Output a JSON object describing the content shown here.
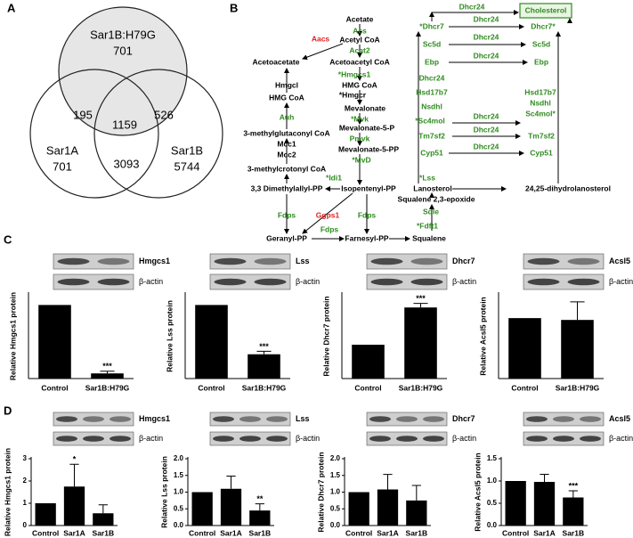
{
  "panel_labels": [
    "A",
    "B",
    "C",
    "D"
  ],
  "venn": {
    "sets": [
      {
        "name": "Sar1B:H79G",
        "count": 701
      },
      {
        "name": "Sar1A",
        "count": 701
      },
      {
        "name": "Sar1B",
        "count": 5744
      }
    ],
    "intersections": [
      195,
      526,
      3093,
      1159
    ]
  },
  "pathway": {
    "nodes": [
      {
        "label": "Acetate",
        "color": "#000000"
      },
      {
        "label": "Acs",
        "color": "#2e8b1e"
      },
      {
        "label": "Acetyl CoA",
        "color": "#000000"
      },
      {
        "label": "Aacs",
        "color": "#e02020"
      },
      {
        "label": "Acetoacetate",
        "color": "#000000"
      },
      {
        "label": "Acat2",
        "color": "#2e8b1e"
      },
      {
        "label": "Acetoacetyl CoA",
        "color": "#000000"
      },
      {
        "label": "*Hmgcs1",
        "color": "#2e8b1e"
      },
      {
        "label": "Hmgcl",
        "color": "#000000"
      },
      {
        "label": "HMG CoA",
        "color": "#000000"
      },
      {
        "label": "HMG CoA",
        "color": "#000000"
      },
      {
        "label": "*Hmgcr",
        "color": "#000000"
      },
      {
        "label": "Auh",
        "color": "#2e8b1e"
      },
      {
        "label": "3-methylglutaconyl CoA",
        "color": "#000000"
      },
      {
        "label": "Mevalonate",
        "color": "#000000"
      },
      {
        "label": "*Mvk",
        "color": "#2e8b1e"
      },
      {
        "label": "Mevalonate-5-P",
        "color": "#000000"
      },
      {
        "label": "Pmvk",
        "color": "#2e8b1e"
      },
      {
        "label": "Mevalonate-5-PP",
        "color": "#000000"
      },
      {
        "label": "Mcc1",
        "color": "#000000"
      },
      {
        "label": "Mcc2",
        "color": "#000000"
      },
      {
        "label": "3-methylcrotonyl CoA",
        "color": "#000000"
      },
      {
        "label": "*MvD",
        "color": "#2e8b1e"
      },
      {
        "label": "*Idi1",
        "color": "#2e8b1e"
      },
      {
        "label": "3,3 Dimethylallyl-PP",
        "color": "#000000"
      },
      {
        "label": "Isopentenyl-PP",
        "color": "#000000"
      },
      {
        "label": "Fdps",
        "color": "#2e8b1e"
      },
      {
        "label": "Ggps1",
        "color": "#e02020"
      },
      {
        "label": "Fdps",
        "color": "#2e8b1e"
      },
      {
        "label": "Geranyl-PP",
        "color": "#000000"
      },
      {
        "label": "Fdps",
        "color": "#2e8b1e"
      },
      {
        "label": "Farnesyl-PP",
        "color": "#000000"
      },
      {
        "label": "Squalene",
        "color": "#000000"
      },
      {
        "label": "*Fdft1",
        "color": "#2e8b1e"
      },
      {
        "label": "Sqle",
        "color": "#2e8b1e"
      },
      {
        "label": "Squalene 2,3-epoxide",
        "color": "#000000"
      },
      {
        "label": "*Lss",
        "color": "#2e8b1e"
      },
      {
        "label": "Lanosterol",
        "color": "#000000"
      },
      {
        "label": "24,25-dihydrolanosterol",
        "color": "#000000"
      },
      {
        "label": "Cyp51",
        "color": "#2e8b1e"
      },
      {
        "label": "Cyp51",
        "color": "#2e8b1e"
      },
      {
        "label": "Dhcr24",
        "color": "#2e8b1e"
      },
      {
        "label": "Tm7sf2",
        "color": "#2e8b1e"
      },
      {
        "label": "Tm7sf2",
        "color": "#2e8b1e"
      },
      {
        "label": "Dhcr24",
        "color": "#2e8b1e"
      },
      {
        "label": "*Sc4mol",
        "color": "#2e8b1e"
      },
      {
        "label": "Nsdhl",
        "color": "#2e8b1e"
      },
      {
        "label": "Hsd17b7",
        "color": "#2e8b1e"
      },
      {
        "label": "Dhcr24",
        "color": "#2e8b1e"
      },
      {
        "label": "Hsd17b7",
        "color": "#2e8b1e"
      },
      {
        "label": "Nsdhl",
        "color": "#2e8b1e"
      },
      {
        "label": "Sc4mol*",
        "color": "#2e8b1e"
      },
      {
        "label": "Dhcr24",
        "color": "#2e8b1e"
      },
      {
        "label": "Ebp",
        "color": "#2e8b1e"
      },
      {
        "label": "Ebp",
        "color": "#2e8b1e"
      },
      {
        "label": "Dhcr24",
        "color": "#2e8b1e"
      },
      {
        "label": "Sc5d",
        "color": "#2e8b1e"
      },
      {
        "label": "Sc5d",
        "color": "#2e8b1e"
      },
      {
        "label": "Dhcr24",
        "color": "#2e8b1e"
      },
      {
        "label": "*Dhcr7",
        "color": "#2e8b1e"
      },
      {
        "label": "Dhcr7*",
        "color": "#2e8b1e"
      },
      {
        "label": "Dhcr24",
        "color": "#2e8b1e"
      },
      {
        "label": "Dhcr24",
        "color": "#2e8b1e"
      },
      {
        "label": "Cholesterol",
        "color": "#2e8b1e"
      }
    ]
  },
  "chart_data": [
    {
      "type": "bar",
      "ylabel": "Relative Hmgcs1 protein",
      "blot_labels": [
        "Hmgcs1",
        "β-actin"
      ],
      "color": "#000000",
      "categories": [
        "Control",
        "Sar1B:H79G"
      ],
      "values": [
        1.0,
        0.07
      ],
      "errors": [
        null,
        0.03
      ],
      "annotations": [
        null,
        "***"
      ],
      "ylim": [
        0,
        1.15
      ]
    },
    {
      "type": "bar",
      "ylabel": "Relative Lss protein",
      "blot_labels": [
        "Lss",
        "β-actin"
      ],
      "color": "#000000",
      "categories": [
        "Control",
        "Sar1B:H79G"
      ],
      "values": [
        1.0,
        0.33
      ],
      "errors": [
        null,
        0.04
      ],
      "annotations": [
        null,
        "***"
      ],
      "ylim": [
        0,
        1.15
      ]
    },
    {
      "type": "bar",
      "ylabel": "Relative Dhcr7 protein",
      "blot_labels": [
        "Dhcr7",
        "β-actin"
      ],
      "color": "#000000",
      "categories": [
        "Control",
        "Sar1B:H79G"
      ],
      "values": [
        1.0,
        2.1
      ],
      "errors": [
        null,
        0.12
      ],
      "annotations": [
        null,
        "***"
      ],
      "ylim": [
        0,
        2.5
      ]
    },
    {
      "type": "bar",
      "ylabel": "Relative Acsl5 protein",
      "blot_labels": [
        "Acsl5",
        "β-actin"
      ],
      "color": "#000000",
      "categories": [
        "Control",
        "Sar1B:H79G"
      ],
      "values": [
        1.0,
        0.97
      ],
      "errors": [
        null,
        0.3
      ],
      "annotations": [
        null,
        null
      ],
      "ylim": [
        0,
        1.4
      ]
    },
    {
      "type": "bar",
      "ylabel": "Relative Hmgcs1 protein",
      "blot_labels": [
        "Hmgcs1",
        "β-actin"
      ],
      "color": "#000000",
      "categories": [
        "Control",
        "Sar1A",
        "Sar1B"
      ],
      "values": [
        1.0,
        1.75,
        0.55
      ],
      "errors": [
        null,
        1.0,
        0.38
      ],
      "annotations": [
        null,
        "*",
        null
      ],
      "ylim": [
        0,
        3
      ],
      "yticks": [
        0,
        1,
        2,
        3
      ]
    },
    {
      "type": "bar",
      "ylabel": "Relative Lss protein",
      "blot_labels": [
        "Lss",
        "β-actin"
      ],
      "color": "#000000",
      "categories": [
        "Control",
        "Sar1A",
        "Sar1B"
      ],
      "values": [
        1.0,
        1.1,
        0.45
      ],
      "errors": [
        null,
        0.38,
        0.2
      ],
      "annotations": [
        null,
        null,
        "**"
      ],
      "ylim": [
        0,
        2
      ],
      "yticks": [
        {
          "value": 0,
          "label": "0.0"
        },
        {
          "value": 0.5,
          "label": "0.5"
        },
        {
          "value": 1,
          "label": "1.0"
        },
        {
          "value": 1.5,
          "label": "1.5"
        },
        {
          "value": 2,
          "label": "2.0"
        }
      ]
    },
    {
      "type": "bar",
      "ylabel": "Relative Dhcr7 protein",
      "blot_labels": [
        "Dhcr7",
        "β-actin"
      ],
      "color": "#000000",
      "categories": [
        "Control",
        "Sar1A",
        "Sar1B"
      ],
      "values": [
        1.0,
        1.08,
        0.75
      ],
      "errors": [
        null,
        0.45,
        0.45
      ],
      "annotations": [
        null,
        null,
        null
      ],
      "ylim": [
        0,
        2
      ],
      "yticks": [
        {
          "value": 0,
          "label": "0.0"
        },
        {
          "value": 0.5,
          "label": "0.5"
        },
        {
          "value": 1,
          "label": "1.0"
        },
        {
          "value": 1.5,
          "label": "1.5"
        },
        {
          "value": 2,
          "label": "2.0"
        }
      ]
    },
    {
      "type": "bar",
      "ylabel": "Relative Acsl5 protein",
      "blot_labels": [
        "Acsl5",
        "β-actin"
      ],
      "color": "#000000",
      "categories": [
        "Control",
        "Sar1A",
        "Sar1B"
      ],
      "values": [
        1.0,
        0.98,
        0.63
      ],
      "errors": [
        null,
        0.17,
        0.15
      ],
      "annotations": [
        null,
        null,
        "***"
      ],
      "ylim": [
        0,
        1.5
      ],
      "yticks": [
        {
          "value": 0,
          "label": "0.0"
        },
        {
          "value": 0.5,
          "label": "0.5"
        },
        {
          "value": 1,
          "label": "1.0"
        },
        {
          "value": 1.5,
          "label": "1.5"
        }
      ]
    }
  ]
}
